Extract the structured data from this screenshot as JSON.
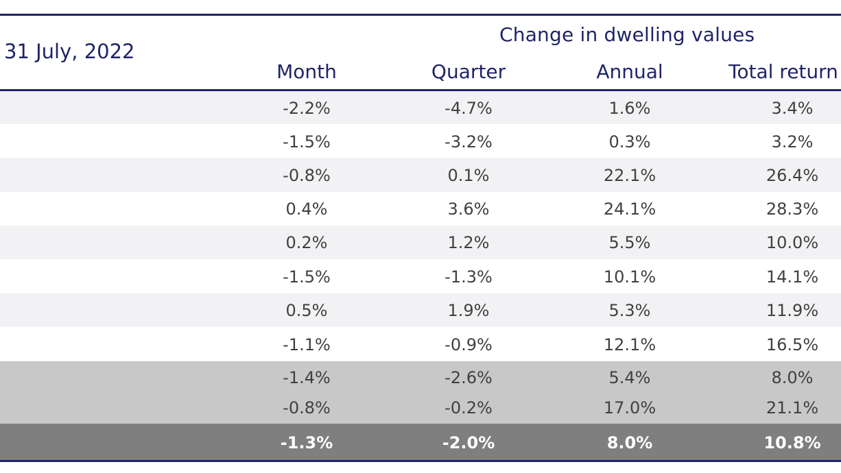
{
  "header": {
    "as_at": "31 July, 2022",
    "group_title": "Change in dwelling values",
    "columns": [
      "Month",
      "Quarter",
      "Annual",
      "Total return"
    ]
  },
  "rows": [
    {
      "month": "-2.2%",
      "quarter": "-4.7%",
      "annual": "1.6%",
      "total_return": "3.4%",
      "bg": "#f2f2f4"
    },
    {
      "month": "-1.5%",
      "quarter": "-3.2%",
      "annual": "0.3%",
      "total_return": "3.2%",
      "bg": "#ffffff"
    },
    {
      "month": "-0.8%",
      "quarter": "0.1%",
      "annual": "22.1%",
      "total_return": "26.4%",
      "bg": "#f2f2f4"
    },
    {
      "month": "0.4%",
      "quarter": "3.6%",
      "annual": "24.1%",
      "total_return": "28.3%",
      "bg": "#ffffff"
    },
    {
      "month": "0.2%",
      "quarter": "1.2%",
      "annual": "5.5%",
      "total_return": "10.0%",
      "bg": "#f2f2f4"
    },
    {
      "month": "-1.5%",
      "quarter": "-1.3%",
      "annual": "10.1%",
      "total_return": "14.1%",
      "bg": "#ffffff"
    },
    {
      "month": "0.5%",
      "quarter": "1.9%",
      "annual": "5.3%",
      "total_return": "11.9%",
      "bg": "#f2f2f4"
    },
    {
      "month": "-1.1%",
      "quarter": "-0.9%",
      "annual": "12.1%",
      "total_return": "16.5%",
      "bg": "#ffffff"
    },
    {
      "month": "-1.4%",
      "quarter": "-2.6%",
      "annual": "5.4%",
      "total_return": "8.0%",
      "bg": "#c8c8c8"
    },
    {
      "month": "-0.8%",
      "quarter": "-0.2%",
      "annual": "17.0%",
      "total_return": "21.1%",
      "bg": "#c8c8c8"
    },
    {
      "month": "-1.3%",
      "quarter": "-2.0%",
      "annual": "8.0%",
      "total_return": "10.8%",
      "bg": "#7f7f7f",
      "bold": true
    }
  ],
  "colors": {
    "header_text": "#1f2466",
    "rule": "#1f2466",
    "cell_text": "#404040",
    "total_text": "#ffffff"
  }
}
